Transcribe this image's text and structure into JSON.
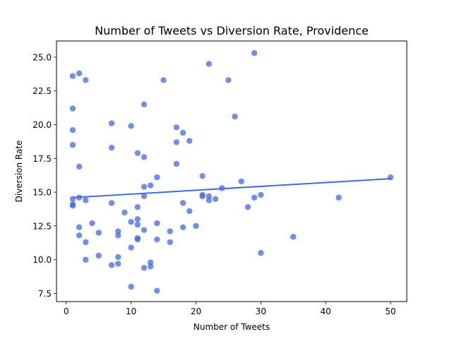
{
  "chart_data": {
    "type": "scatter",
    "title": "Number of Tweets vs Diversion Rate, Providence",
    "xlabel": "Number of Tweets",
    "ylabel": "Diversion Rate",
    "xlim": [
      -1.5,
      52.5
    ],
    "ylim": [
      6.9,
      26.2
    ],
    "x_ticks": [
      0,
      10,
      20,
      30,
      40,
      50
    ],
    "y_ticks": [
      7.5,
      10.0,
      12.5,
      15.0,
      17.5,
      20.0,
      22.5,
      25.0
    ],
    "grid": false,
    "colors": {
      "points": "#4169e1",
      "trend_line": "#4169e1"
    },
    "series": [
      {
        "points": [
          [
            1,
            23.6
          ],
          [
            1,
            21.2
          ],
          [
            1,
            19.6
          ],
          [
            1,
            18.5
          ],
          [
            1,
            14.5
          ],
          [
            1,
            14.1
          ],
          [
            1,
            14.0
          ],
          [
            2,
            23.8
          ],
          [
            2,
            16.9
          ],
          [
            2,
            14.6
          ],
          [
            2,
            12.4
          ],
          [
            2,
            11.8
          ],
          [
            3,
            23.3
          ],
          [
            3,
            14.4
          ],
          [
            3,
            11.3
          ],
          [
            3,
            10.0
          ],
          [
            4,
            12.7
          ],
          [
            5,
            12.0
          ],
          [
            5,
            10.3
          ],
          [
            7,
            20.1
          ],
          [
            7,
            18.3
          ],
          [
            7,
            14.2
          ],
          [
            7,
            9.6
          ],
          [
            8,
            12.1
          ],
          [
            8,
            11.8
          ],
          [
            8,
            10.2
          ],
          [
            8,
            9.7
          ],
          [
            9,
            13.5
          ],
          [
            10,
            19.9
          ],
          [
            10,
            12.8
          ],
          [
            10,
            10.9
          ],
          [
            10,
            8.0
          ],
          [
            11,
            17.9
          ],
          [
            11,
            13.9
          ],
          [
            11,
            13.0
          ],
          [
            11,
            12.6
          ],
          [
            11,
            11.6
          ],
          [
            11,
            11.5
          ],
          [
            12,
            21.5
          ],
          [
            12,
            17.6
          ],
          [
            12,
            15.4
          ],
          [
            12,
            14.7
          ],
          [
            12,
            12.2
          ],
          [
            12,
            9.4
          ],
          [
            13,
            15.5
          ],
          [
            13,
            9.8
          ],
          [
            13,
            9.5
          ],
          [
            14,
            16.1
          ],
          [
            14,
            12.7
          ],
          [
            14,
            11.5
          ],
          [
            14,
            7.7
          ],
          [
            15,
            23.3
          ],
          [
            16,
            12.1
          ],
          [
            16,
            11.3
          ],
          [
            17,
            19.8
          ],
          [
            17,
            18.7
          ],
          [
            17,
            17.1
          ],
          [
            18,
            19.4
          ],
          [
            18,
            14.2
          ],
          [
            18,
            12.4
          ],
          [
            19,
            18.8
          ],
          [
            19,
            13.6
          ],
          [
            20,
            12.5
          ],
          [
            21,
            16.2
          ],
          [
            21,
            14.8
          ],
          [
            21,
            14.7
          ],
          [
            22,
            24.5
          ],
          [
            22,
            14.7
          ],
          [
            22,
            14.4
          ],
          [
            23,
            14.5
          ],
          [
            24,
            15.3
          ],
          [
            25,
            23.3
          ],
          [
            26,
            20.6
          ],
          [
            27,
            15.8
          ],
          [
            28,
            13.9
          ],
          [
            29,
            25.3
          ],
          [
            29,
            14.6
          ],
          [
            30,
            14.8
          ],
          [
            30,
            10.5
          ],
          [
            35,
            11.7
          ],
          [
            42,
            14.6
          ],
          [
            50,
            16.1
          ]
        ]
      }
    ],
    "trend_line": {
      "x": [
        1,
        50
      ],
      "y": [
        14.6,
        16.0
      ]
    }
  }
}
